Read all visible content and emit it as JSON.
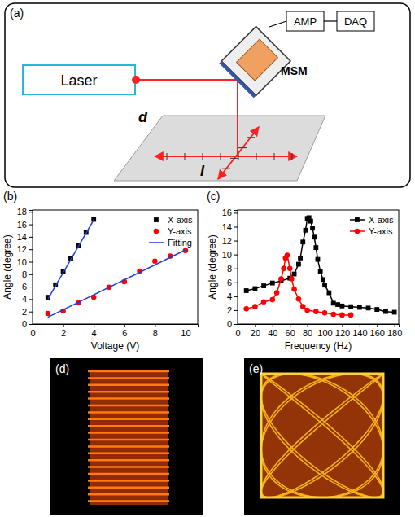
{
  "panels": [
    "(a)",
    "(b)",
    "(c)",
    "(d)",
    "(e)"
  ],
  "diagram": {
    "laser": "Laser",
    "amp": "AMP",
    "daq": "DAQ",
    "msm": "MSM",
    "distance": "d",
    "length": "l"
  },
  "chart_data": [
    {
      "type": "scatter",
      "x_label": "Voltage (V)",
      "y_label": "Angle (degree)",
      "xlim": [
        0,
        10.8
      ],
      "ylim": [
        0,
        18.3
      ],
      "xticks": [
        0,
        2,
        4,
        6,
        8,
        10
      ],
      "yticks": [
        0,
        2,
        4,
        6,
        8,
        10,
        12,
        14,
        16,
        18
      ],
      "legend": "upper right",
      "series": [
        {
          "name": "X-axis",
          "color": "#000000",
          "marker": "square",
          "x": [
            1,
            1.5,
            2,
            2.5,
            3,
            3.5,
            4
          ],
          "values": [
            4.3,
            6.3,
            8.4,
            10.5,
            12.6,
            14.7,
            16.8
          ]
        },
        {
          "name": "Y-axis",
          "color": "#ff0000",
          "marker": "circle",
          "x": [
            1,
            2,
            3,
            4,
            5,
            6,
            7,
            8,
            9,
            10
          ],
          "values": [
            1.7,
            2.1,
            3.4,
            4.3,
            5.9,
            6.8,
            8.5,
            10.1,
            10.9,
            11.8
          ]
        },
        {
          "name": "Fitting",
          "color": "#1c3fd6",
          "type": "line",
          "line_style": "solid",
          "marker": "none",
          "x": [
            1,
            4,
            null,
            1,
            10
          ],
          "values": [
            4.0,
            16.7,
            null,
            1.1,
            11.9
          ]
        }
      ]
    },
    {
      "type": "line",
      "x_label": "Frequency (Hz)",
      "y_label": "Angle (degree)",
      "xlim": [
        0,
        185
      ],
      "ylim": [
        0,
        16.4
      ],
      "xticks": [
        0,
        20,
        40,
        60,
        80,
        100,
        120,
        140,
        160,
        180
      ],
      "yticks": [
        0,
        2,
        4,
        6,
        8,
        10,
        12,
        14,
        16
      ],
      "legend": "upper right",
      "series": [
        {
          "name": "X-axis",
          "color": "#000000",
          "marker": "square",
          "line_style": "solid",
          "x": [
            10,
            20,
            30,
            40,
            50,
            60,
            65,
            70,
            72,
            75,
            78,
            80,
            82,
            84,
            86,
            88,
            90,
            92,
            95,
            98,
            100,
            105,
            110,
            115,
            120,
            130,
            140,
            150,
            160,
            170,
            180
          ],
          "values": [
            4.8,
            5.1,
            5.5,
            5.9,
            6.2,
            6.6,
            7.2,
            8.6,
            9.5,
            11.8,
            13.5,
            15.2,
            15.3,
            14.8,
            13.8,
            12.5,
            11.0,
            9.3,
            7.6,
            6.4,
            5.6,
            4.5,
            3.0,
            2.8,
            2.6,
            2.5,
            2.4,
            2.3,
            2.1,
            1.8,
            1.7
          ]
        },
        {
          "name": "Y-axis",
          "color": "#ff0000",
          "marker": "circle",
          "line_style": "solid",
          "x": [
            10,
            20,
            30,
            40,
            45,
            50,
            53,
            55,
            57,
            60,
            62,
            65,
            70,
            75,
            80,
            90,
            100,
            110,
            120,
            130
          ],
          "values": [
            2.2,
            2.5,
            3.2,
            3.5,
            4.5,
            6.5,
            8.0,
            9.5,
            9.9,
            8.0,
            6.5,
            5.0,
            3.6,
            2.5,
            2.0,
            1.8,
            1.6,
            1.4,
            1.3,
            1.3
          ]
        }
      ]
    }
  ]
}
